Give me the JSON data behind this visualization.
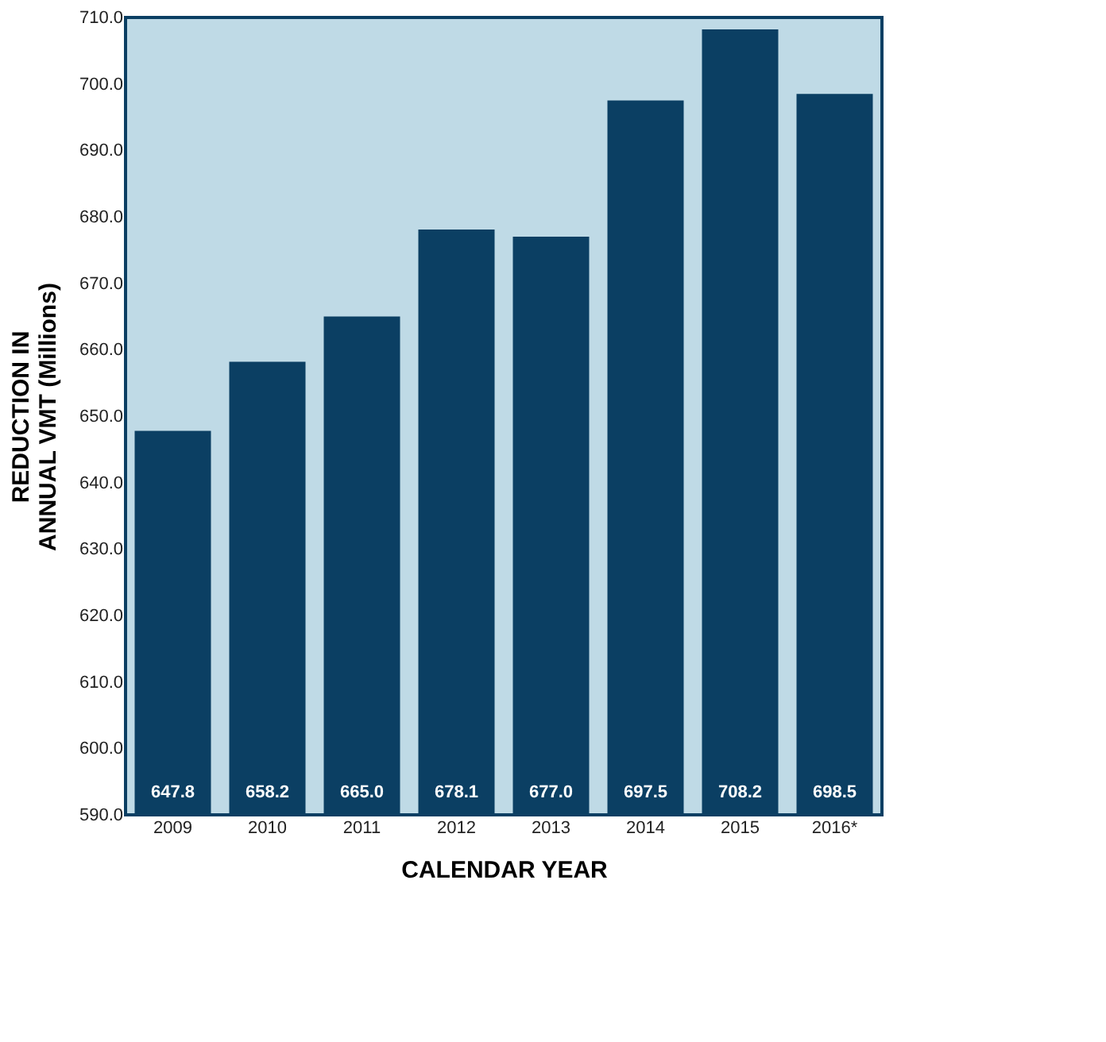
{
  "chart_data": {
    "type": "bar",
    "xlabel": "CALENDAR YEAR",
    "ylabel": "REDUCTION IN\nANNUAL VMT (Millions)",
    "categories": [
      "2009",
      "2010",
      "2011",
      "2012",
      "2013",
      "2014",
      "2015",
      "2016*"
    ],
    "values": [
      647.8,
      658.2,
      665.0,
      678.1,
      677.0,
      697.5,
      708.2,
      698.5
    ],
    "color": "#0b3f63",
    "value_labels": [
      "647.8",
      "658.2",
      "665.0",
      "678.1",
      "677.0",
      "697.5",
      "708.2",
      "698.5"
    ],
    "ylim": [
      590,
      710
    ],
    "yticks": [
      {
        "value": 590,
        "label": "590.0"
      },
      {
        "value": 600,
        "label": "600.0"
      },
      {
        "value": 610,
        "label": "610.0"
      },
      {
        "value": 620,
        "label": "620.0"
      },
      {
        "value": 630,
        "label": "630.0"
      },
      {
        "value": 640,
        "label": "640.0"
      },
      {
        "value": 650,
        "label": "650.0"
      },
      {
        "value": 660,
        "label": "660.0"
      },
      {
        "value": 670,
        "label": "670.0"
      },
      {
        "value": 680,
        "label": "680.0"
      },
      {
        "value": 690,
        "label": "690.0"
      },
      {
        "value": 700,
        "label": "700.0"
      },
      {
        "value": 710,
        "label": "710.0"
      }
    ],
    "grid": false
  }
}
